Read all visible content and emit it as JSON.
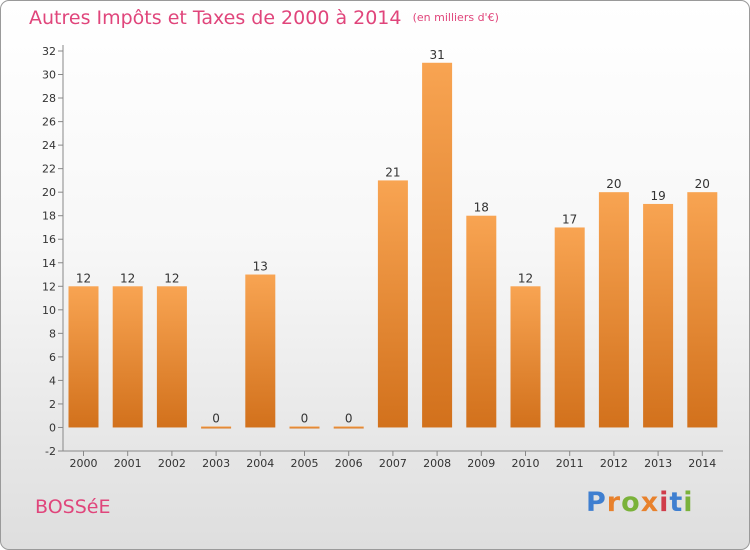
{
  "page": {
    "title": "Autres Impôts et Taxes de 2000 à 2014",
    "unit": "(en milliers d'€)",
    "commune": "BOSSéE",
    "logo": "Proxiti"
  },
  "colors": {
    "title": "#e0457b",
    "bar_top": "#f8a452",
    "bar_bottom": "#d2711c",
    "logo": [
      "#3f7fd0",
      "#e8812c",
      "#7ab23a",
      "#e8812c",
      "#d03c4a",
      "#3f7fd0",
      "#7ab23a"
    ]
  },
  "chart_data": {
    "type": "bar",
    "categories": [
      "2000",
      "2001",
      "2002",
      "2003",
      "2004",
      "2005",
      "2006",
      "2007",
      "2008",
      "2009",
      "2010",
      "2011",
      "2012",
      "2013",
      "2014"
    ],
    "values": [
      12,
      12,
      12,
      0,
      13,
      0,
      0,
      21,
      31,
      18,
      12,
      17,
      20,
      19,
      20
    ],
    "ylim": [
      -2,
      32
    ],
    "yticks": [
      -2,
      0,
      2,
      4,
      6,
      8,
      10,
      12,
      14,
      16,
      18,
      20,
      22,
      24,
      26,
      28,
      30,
      32
    ],
    "grid": false,
    "legend": "none"
  }
}
